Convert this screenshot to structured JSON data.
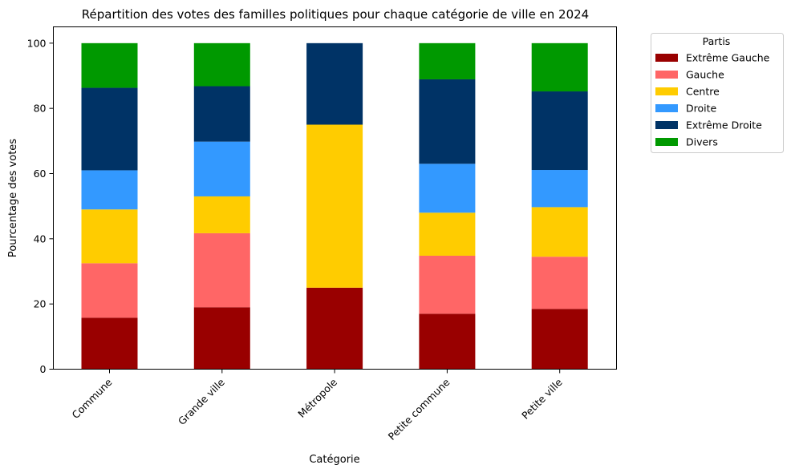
{
  "chart_data": {
    "type": "bar",
    "stacked": true,
    "title": "Répartition des votes des familles politiques pour chaque catégorie de ville en 2024",
    "xlabel": "Catégorie",
    "ylabel": "Pourcentage des votes",
    "ylim": [
      0,
      105
    ],
    "yticks": [
      0,
      20,
      40,
      60,
      80,
      100
    ],
    "grid": false,
    "legend_title": "Partis",
    "legend_position": "outside-right",
    "categories": [
      "Commune",
      "Grande ville",
      "Métropole",
      "Petite commune",
      "Petite ville"
    ],
    "series": [
      {
        "name": "Extrême Gauche",
        "color": "#990000",
        "values": [
          15.8,
          19.0,
          25.0,
          17.0,
          18.5
        ]
      },
      {
        "name": "Gauche",
        "color": "#ff6666",
        "values": [
          16.7,
          22.7,
          0.0,
          17.8,
          16.0
        ]
      },
      {
        "name": "Centre",
        "color": "#ffcc00",
        "values": [
          16.5,
          11.3,
          50.0,
          13.2,
          15.2
        ]
      },
      {
        "name": "Droite",
        "color": "#3399ff",
        "values": [
          12.0,
          16.8,
          0.0,
          15.0,
          11.4
        ]
      },
      {
        "name": "Extrême Droite",
        "color": "#003366",
        "values": [
          25.3,
          17.0,
          25.0,
          25.9,
          24.1
        ]
      },
      {
        "name": "Divers",
        "color": "#009900",
        "values": [
          13.7,
          13.2,
          0.0,
          11.1,
          14.8
        ]
      }
    ]
  }
}
